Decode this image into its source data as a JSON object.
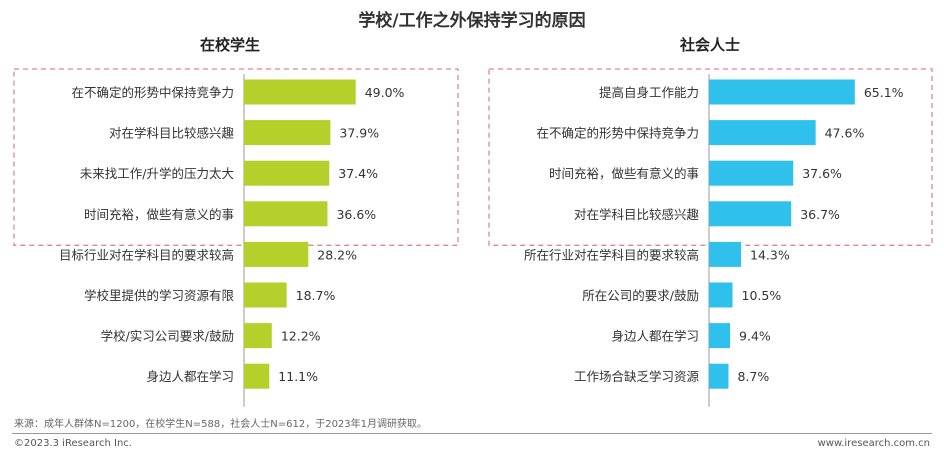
{
  "title": "学校/工作之外保持学习的原因",
  "source_note": "来源：成年人群体N=1200，在校学生N=588，社会人士N=612，于2023年1月调研获取。",
  "copyright": "©2023.3 iResearch Inc.",
  "website": "www.iresearch.com.cn",
  "colors": {
    "students_bar": "#b5cf2b",
    "workers_bar": "#2fc1eb",
    "highlight_border": "#e0849a",
    "axis": "#999999"
  },
  "chart_data": [
    {
      "type": "bar",
      "orientation": "horizontal",
      "title": "在校学生",
      "categories": [
        "在不确定的形势中保持竞争力",
        "对在学科目比较感兴趣",
        "未来找工作/升学的压力太大",
        "时间充裕，做些有意义的事",
        "目标行业对在学科目的要求较高",
        "学校里提供的学习资源有限",
        "学校/实习公司要求/鼓励",
        "身边人都在学习"
      ],
      "values": [
        49.0,
        37.9,
        37.4,
        36.6,
        28.2,
        18.7,
        12.2,
        11.1
      ],
      "labels": [
        "49.0%",
        "37.9%",
        "37.4%",
        "36.6%",
        "28.2%",
        "18.7%",
        "12.2%",
        "11.1%"
      ],
      "highlighted_top": 4
    },
    {
      "type": "bar",
      "orientation": "horizontal",
      "title": "社会人士",
      "categories": [
        "提高自身工作能力",
        "在不确定的形势中保持竞争力",
        "时间充裕，做些有意义的事",
        "对在学科目比较感兴趣",
        "所在行业对在学科目的要求较高",
        "所在公司的要求/鼓励",
        "身边人都在学习",
        "工作场合缺乏学习资源"
      ],
      "values": [
        65.1,
        47.6,
        37.6,
        36.7,
        14.3,
        10.5,
        9.4,
        8.7
      ],
      "labels": [
        "65.1%",
        "47.6%",
        "37.6%",
        "36.7%",
        "14.3%",
        "10.5%",
        "9.4%",
        "8.7%"
      ],
      "highlighted_top": 4
    }
  ]
}
